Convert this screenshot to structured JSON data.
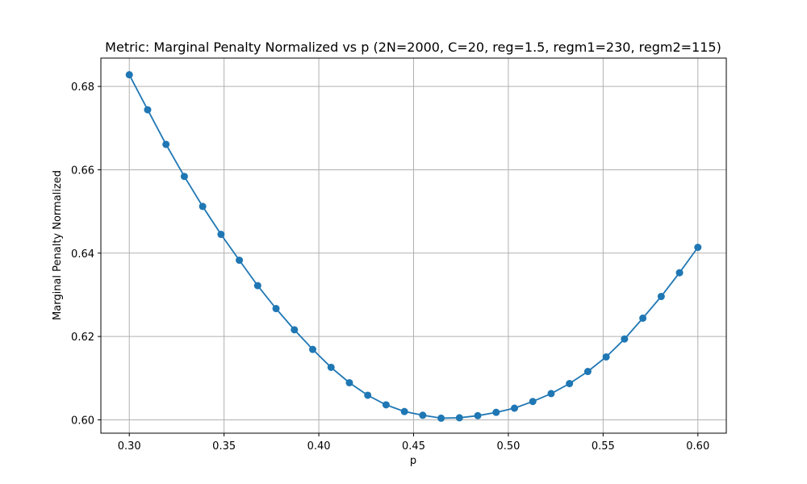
{
  "chart_data": {
    "type": "line",
    "title": "Metric: Marginal Penalty Normalized vs p (2N=2000, C=20, reg=1.5, regm1=230, regm2=115)",
    "xlabel": "p",
    "ylabel": "Marginal Penalty Normalized",
    "xlim": [
      0.285,
      0.615
    ],
    "ylim": [
      0.5968,
      0.6868
    ],
    "xticks": [
      "0.30",
      "0.35",
      "0.40",
      "0.45",
      "0.50",
      "0.55",
      "0.60"
    ],
    "yticks": [
      "0.60",
      "0.62",
      "0.64",
      "0.66",
      "0.68"
    ],
    "xtick_values": [
      0.3,
      0.35,
      0.4,
      0.45,
      0.5,
      0.55,
      0.6
    ],
    "ytick_values": [
      0.6,
      0.62,
      0.64,
      0.66,
      0.68
    ],
    "grid": true,
    "series": [
      {
        "color": "#1f77b4",
        "marker": "circle",
        "x": [
          0.3,
          0.30968,
          0.31935,
          0.32903,
          0.33871,
          0.34839,
          0.35806,
          0.36774,
          0.37742,
          0.3871,
          0.39677,
          0.40645,
          0.41613,
          0.42581,
          0.43548,
          0.44516,
          0.45484,
          0.46452,
          0.47419,
          0.48387,
          0.49355,
          0.50323,
          0.5129,
          0.52258,
          0.53226,
          0.54194,
          0.55161,
          0.56129,
          0.57097,
          0.58065,
          0.59032,
          0.6
        ],
        "y": [
          0.6828,
          0.6744,
          0.6661,
          0.6584,
          0.6512,
          0.6445,
          0.6383,
          0.6322,
          0.6267,
          0.6216,
          0.6169,
          0.6126,
          0.6089,
          0.6059,
          0.6036,
          0.602,
          0.6011,
          0.6004,
          0.6005,
          0.601,
          0.6018,
          0.6028,
          0.6044,
          0.6063,
          0.6087,
          0.6116,
          0.6151,
          0.6194,
          0.6244,
          0.6296,
          0.6353,
          0.6414
        ]
      }
    ]
  }
}
